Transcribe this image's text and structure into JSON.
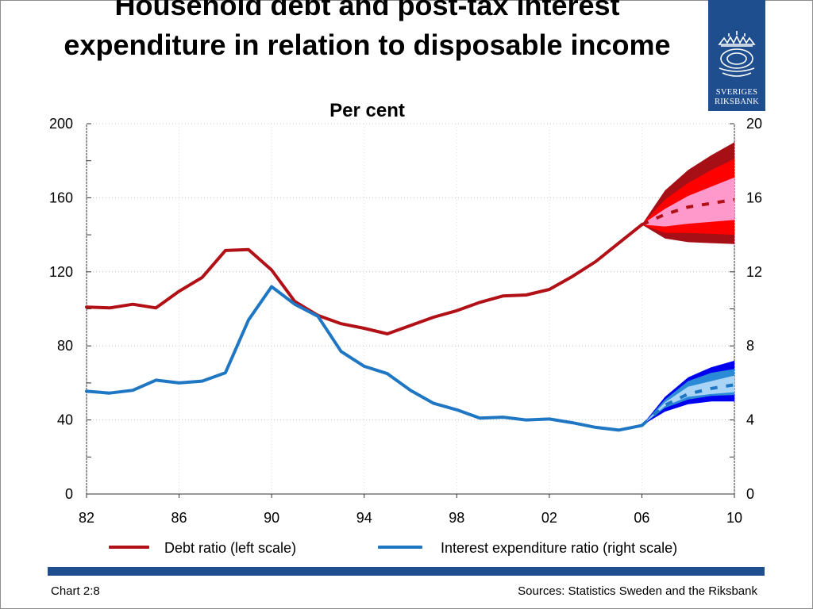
{
  "chart_data": {
    "type": "line",
    "title": "Household debt and post-tax interest expenditure in relation to disposable income",
    "subtitle": "Per cent",
    "xlabel": "",
    "ylabel": "",
    "x_range": [
      1982,
      2010
    ],
    "x_ticks": [
      1982,
      1986,
      1990,
      1994,
      1998,
      2002,
      2006,
      2010
    ],
    "x_tick_labels": [
      "82",
      "86",
      "90",
      "94",
      "98",
      "02",
      "06",
      "10"
    ],
    "y_left": {
      "lim": [
        0,
        200
      ],
      "ticks": [
        0,
        40,
        80,
        120,
        160,
        200
      ],
      "tick_labels": [
        "0",
        "40",
        "80",
        "120",
        "160",
        "200"
      ]
    },
    "y_right": {
      "lim": [
        0,
        20
      ],
      "ticks": [
        0,
        4,
        8,
        12,
        16,
        20
      ],
      "tick_labels": [
        "0",
        "4",
        "8",
        "12",
        "16",
        "20"
      ]
    },
    "grid": "horizontal dotted",
    "legend_position": "bottom",
    "series": [
      {
        "name": "Debt ratio (left scale)",
        "axis": "left",
        "color": "#b11116",
        "x": [
          1982,
          1983,
          1984,
          1985,
          1986,
          1987,
          1988,
          1989,
          1990,
          1991,
          1992,
          1993,
          1994,
          1995,
          1996,
          1997,
          1998,
          1999,
          2000,
          2001,
          2002,
          2003,
          2004,
          2005,
          2006
        ],
        "values": [
          101,
          100.5,
          102.5,
          100.5,
          109.5,
          117,
          131.5,
          132,
          121,
          104,
          96.5,
          92,
          89.5,
          86.5,
          91,
          95.5,
          99,
          103.5,
          107,
          107.5,
          110.5,
          117.5,
          125.5,
          135.5,
          145.5
        ],
        "forecast": {
          "x": [
            2006,
            2007,
            2008,
            2009,
            2010
          ],
          "median": [
            145.5,
            151,
            155,
            157,
            159
          ],
          "bands": [
            {
              "color": "#a50f15",
              "upper": [
                145.5,
                164,
                175,
                183,
                190
              ],
              "lower": [
                145.5,
                138,
                136,
                135.5,
                135
              ]
            },
            {
              "color": "#ff0000",
              "upper": [
                145.5,
                159,
                168,
                175,
                181
              ],
              "lower": [
                145.5,
                141,
                141,
                140.5,
                140
              ]
            },
            {
              "color": "#ff99cc",
              "upper": [
                145.5,
                154,
                161,
                166,
                171
              ],
              "lower": [
                145.5,
                144.5,
                146,
                147,
                148
              ]
            }
          ]
        }
      },
      {
        "name": "Interest expenditure ratio (right scale)",
        "axis": "right",
        "color": "#1f77c4",
        "x": [
          1982,
          1983,
          1984,
          1985,
          1986,
          1987,
          1988,
          1989,
          1990,
          1991,
          1992,
          1993,
          1994,
          1995,
          1996,
          1997,
          1998,
          1999,
          2000,
          2001,
          2002,
          2003,
          2004,
          2005,
          2006
        ],
        "values": [
          5.55,
          5.45,
          5.6,
          6.15,
          6.0,
          6.1,
          6.55,
          9.4,
          11.2,
          10.25,
          9.6,
          7.7,
          6.9,
          6.5,
          5.6,
          4.9,
          4.55,
          4.1,
          4.15,
          4.0,
          4.05,
          3.85,
          3.6,
          3.45,
          3.7
        ],
        "forecast": {
          "x": [
            2006,
            2007,
            2008,
            2009,
            2010
          ],
          "median": [
            3.7,
            4.8,
            5.4,
            5.7,
            5.9
          ],
          "bands": [
            {
              "color": "#0000ee",
              "upper": [
                3.7,
                5.25,
                6.3,
                6.85,
                7.2
              ],
              "lower": [
                3.7,
                4.45,
                4.85,
                5.0,
                5.0
              ]
            },
            {
              "color": "#2a8ad6",
              "upper": [
                3.7,
                5.1,
                6.1,
                6.55,
                6.75
              ],
              "lower": [
                3.7,
                4.65,
                5.1,
                5.3,
                5.35
              ]
            },
            {
              "color": "#a9d4f5",
              "upper": [
                3.7,
                4.95,
                5.8,
                6.1,
                6.4
              ],
              "lower": [
                3.7,
                4.75,
                5.25,
                5.4,
                5.5
              ]
            }
          ]
        }
      }
    ]
  },
  "legend": {
    "debt_label": "Debt ratio (left scale)",
    "interest_label": "Interest expenditure ratio (right scale)",
    "debt_color": "#b11116",
    "interest_color": "#1f77c4"
  },
  "logo": {
    "line1": "SVERIGES",
    "line2": "RIKSBANK",
    "icon": "riksbank-crest-icon"
  },
  "footer": {
    "chart_number": "Chart 2:8",
    "sources": "Sources: Statistics Sweden and the Riksbank"
  },
  "colors": {
    "brand_blue": "#1f4e8f"
  }
}
